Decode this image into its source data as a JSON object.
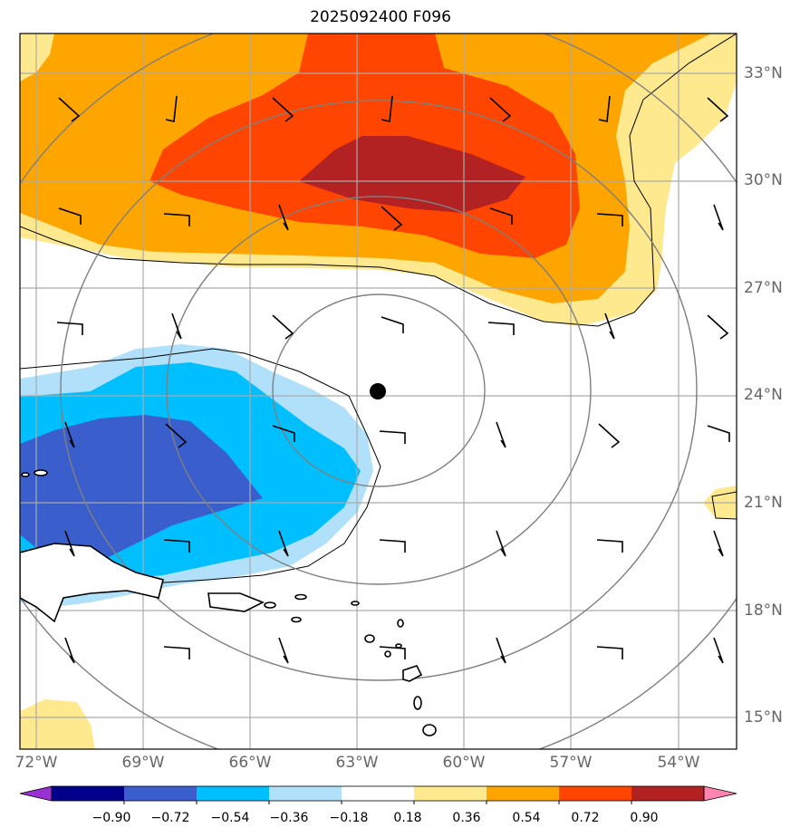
{
  "title": "2025092400 F096",
  "map": {
    "lat_labels": [
      "33°N",
      "30°N",
      "27°N",
      "24°N",
      "21°N",
      "18°N",
      "15°N"
    ],
    "lon_labels": [
      "72°W",
      "69°W",
      "66°W",
      "63°W",
      "60°W",
      "57°W",
      "54°W"
    ],
    "storm_center": {
      "lat": 24.1,
      "lon": -62.5
    }
  },
  "colorbar": {
    "labels": [
      "−0.90",
      "−0.72",
      "−0.54",
      "−0.36",
      "−0.18",
      "0.18",
      "0.36",
      "0.54",
      "0.72",
      "0.90"
    ],
    "colors": [
      "#9a2fd3",
      "#00008b",
      "#3a5fcd",
      "#00bfff",
      "#b0e0fa",
      "#ffffff",
      "#ffe98f",
      "#ffa500",
      "#ff4500",
      "#b22222",
      "#ff85b0"
    ]
  }
}
